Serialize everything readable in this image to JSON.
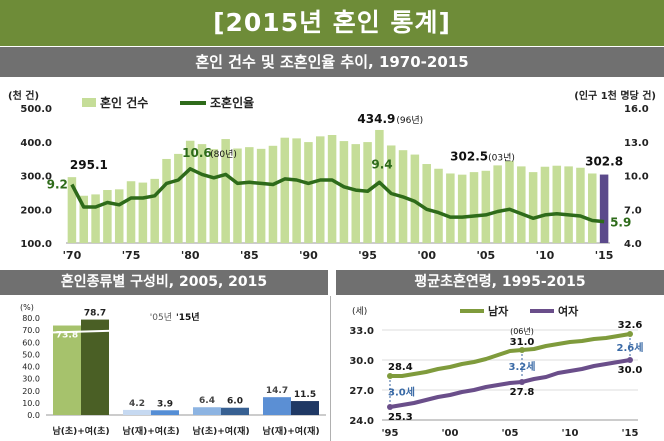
{
  "header": {
    "title": "[2015년 혼인 통계]"
  },
  "colors": {
    "header_bg": "#6e8c38",
    "subheader_bg": "#707070",
    "bar_light": "#c5dd98",
    "bar_2015": "#5b4a8b",
    "crude_line": "#2e6b1a",
    "male": "#7f9b3c",
    "female": "#6a4e8a"
  },
  "chart_data": [
    {
      "type": "bar",
      "title": "혼인 건수 및 조혼인율 추이, 1970-2015",
      "left_unit": "(천 건)",
      "right_unit": "(인구 1천 명당 건)",
      "legend": [
        "혼인 건수",
        "조혼인율"
      ],
      "legend_placement": "top-left",
      "ylim": [
        100,
        500
      ],
      "y_ticks": [
        "100.0",
        "200.0",
        "300.0",
        "400.0",
        "500.0"
      ],
      "y2lim": [
        4,
        16
      ],
      "y2_ticks": [
        "4.0",
        "7.0",
        "10.0",
        "13.0",
        "16.0"
      ],
      "x_tick_labels": [
        "'70",
        "'75",
        "'80",
        "'85",
        "'90",
        "'95",
        "'00",
        "'05",
        "'10",
        "'15"
      ],
      "x": [
        1970,
        1971,
        1972,
        1973,
        1974,
        1975,
        1976,
        1977,
        1978,
        1979,
        1980,
        1981,
        1982,
        1983,
        1984,
        1985,
        1986,
        1987,
        1988,
        1989,
        1990,
        1991,
        1992,
        1993,
        1994,
        1995,
        1996,
        1997,
        1998,
        1999,
        2000,
        2001,
        2002,
        2003,
        2004,
        2005,
        2006,
        2007,
        2008,
        2009,
        2010,
        2011,
        2012,
        2013,
        2014,
        2015
      ],
      "series": [
        {
          "name": "혼인 건수",
          "values": [
            295.1,
            240,
            244,
            257,
            259,
            283,
            279,
            290,
            349,
            364,
            403,
            393,
            378,
            408,
            380,
            384,
            379,
            388,
            412,
            410,
            399,
            416,
            420,
            402,
            393,
            399,
            434.9,
            389,
            375,
            362,
            334,
            320,
            306,
            302.5,
            310,
            314,
            330,
            343,
            327,
            310,
            326,
            329,
            327,
            323,
            306,
            302.8
          ]
        },
        {
          "name": "조혼인율",
          "values": [
            9.2,
            7.2,
            7.2,
            7.6,
            7.4,
            8.0,
            8.0,
            8.2,
            9.3,
            9.6,
            10.6,
            10.1,
            9.8,
            10.1,
            9.3,
            9.4,
            9.3,
            9.2,
            9.7,
            9.6,
            9.3,
            9.6,
            9.6,
            9.0,
            8.7,
            8.6,
            9.4,
            8.4,
            8.1,
            7.7,
            7.0,
            6.7,
            6.3,
            6.3,
            6.4,
            6.5,
            6.8,
            7.0,
            6.6,
            6.2,
            6.5,
            6.6,
            6.5,
            6.4,
            6.0,
            5.9
          ]
        }
      ],
      "annotations": [
        {
          "label": "295.1"
        },
        {
          "label": "9.2"
        },
        {
          "label": "10.6"
        },
        {
          "label": "(80년)"
        },
        {
          "label": "434.9"
        },
        {
          "label": "(96년)"
        },
        {
          "label": "9.4"
        },
        {
          "label": "302.5"
        },
        {
          "label": "(03년)"
        },
        {
          "label": "302.8"
        },
        {
          "label": "5.9"
        }
      ]
    },
    {
      "type": "bar",
      "title": "혼인종류별 구성비, 2005, 2015",
      "ylabel": "(%)",
      "ylim": [
        0,
        80
      ],
      "y_ticks": [
        "0.0",
        "10.0",
        "20.0",
        "30.0",
        "40.0",
        "50.0",
        "60.0",
        "70.0",
        "80.0"
      ],
      "categories": [
        "남(초)+여(초)",
        "남(재)+여(초)",
        "남(초)+여(재)",
        "남(재)+여(재)"
      ],
      "legend": [
        "'05년",
        "'15년"
      ],
      "series": [
        {
          "name": "'05년",
          "values": [
            73.8,
            4.2,
            6.4,
            14.7
          ],
          "labels": [
            "73.8",
            "4.2",
            "6.4",
            "14.7"
          ]
        },
        {
          "name": "'15년",
          "values": [
            78.7,
            3.9,
            6.0,
            11.5
          ],
          "labels": [
            "78.7",
            "3.9",
            "6.0",
            "11.5"
          ]
        }
      ],
      "colors": {
        "2005": [
          "#a6c26c",
          "#c6d9f1",
          "#8db4e2",
          "#5b8fd4"
        ],
        "2015": [
          "#4a5f25",
          "#558ed5",
          "#376092",
          "#1f3864"
        ]
      }
    },
    {
      "type": "line",
      "title": "평균초혼연령, 1995-2015",
      "ylabel": "(세)",
      "ylim": [
        24,
        33
      ],
      "y_ticks": [
        "24.0",
        "27.0",
        "30.0",
        "33.0"
      ],
      "x_tick_labels": [
        "'95",
        "'00",
        "'05",
        "'10",
        "'15"
      ],
      "legend": [
        "남자",
        "여자"
      ],
      "legend_placement": "top-center",
      "x": [
        1995,
        1996,
        1997,
        1998,
        1999,
        2000,
        2001,
        2002,
        2003,
        2004,
        2005,
        2006,
        2007,
        2008,
        2009,
        2010,
        2011,
        2012,
        2013,
        2014,
        2015
      ],
      "series": [
        {
          "name": "남자",
          "values": [
            28.4,
            28.4,
            28.6,
            28.8,
            29.1,
            29.3,
            29.6,
            29.8,
            30.1,
            30.5,
            30.9,
            31.0,
            31.1,
            31.4,
            31.6,
            31.8,
            31.9,
            32.1,
            32.2,
            32.4,
            32.6
          ]
        },
        {
          "name": "여자",
          "values": [
            25.3,
            25.5,
            25.7,
            26.0,
            26.3,
            26.5,
            26.8,
            27.0,
            27.3,
            27.5,
            27.7,
            27.8,
            28.1,
            28.3,
            28.7,
            28.9,
            29.1,
            29.4,
            29.6,
            29.8,
            30.0
          ]
        }
      ],
      "annotations": [
        {
          "label": "28.4"
        },
        {
          "label": "25.3"
        },
        {
          "label": "3.0세"
        },
        {
          "label": "(06년)"
        },
        {
          "label": "31.0"
        },
        {
          "label": "3.2세"
        },
        {
          "label": "27.8"
        },
        {
          "label": "32.6"
        },
        {
          "label": "2.6세"
        },
        {
          "label": "30.0"
        }
      ]
    }
  ]
}
